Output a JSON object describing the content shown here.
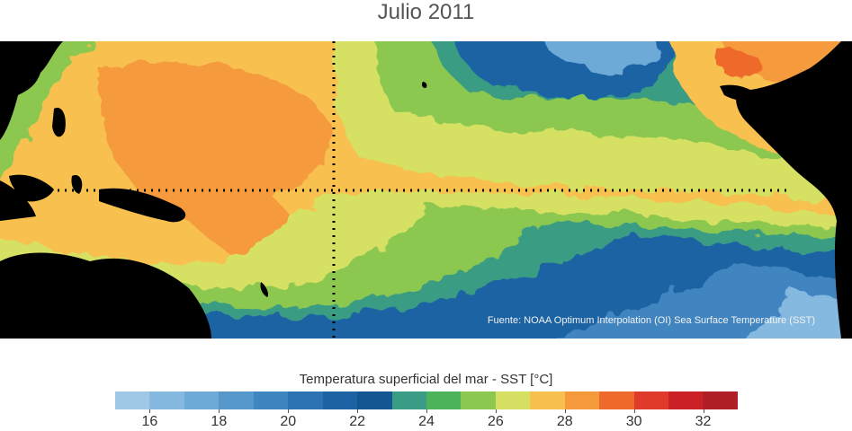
{
  "title": "Julio 2011",
  "source_note": "Fuente: NOAA Optimum Interpolation (OI) Sea Surface Temperature (SST)",
  "colorbar": {
    "title": "Temperatura superficial del mar - SST  [°C]",
    "min": 15,
    "max": 33,
    "colors": [
      "#9ec8e6",
      "#86b9e0",
      "#6eaad8",
      "#5698cc",
      "#3f85c0",
      "#2c73b4",
      "#1d63a4",
      "#135692",
      "#3a9c84",
      "#4cb35a",
      "#8cc84f",
      "#d6e164",
      "#f7c04f",
      "#f59a3c",
      "#ee6a2c",
      "#e03a2a",
      "#cc2027",
      "#b01e28"
    ],
    "ticks": [
      "16",
      "18",
      "20",
      "22",
      "24",
      "26",
      "28",
      "30",
      "32"
    ]
  },
  "map": {
    "land_color": "#000000",
    "reference_lines": "equator and dateline (dotted)"
  }
}
